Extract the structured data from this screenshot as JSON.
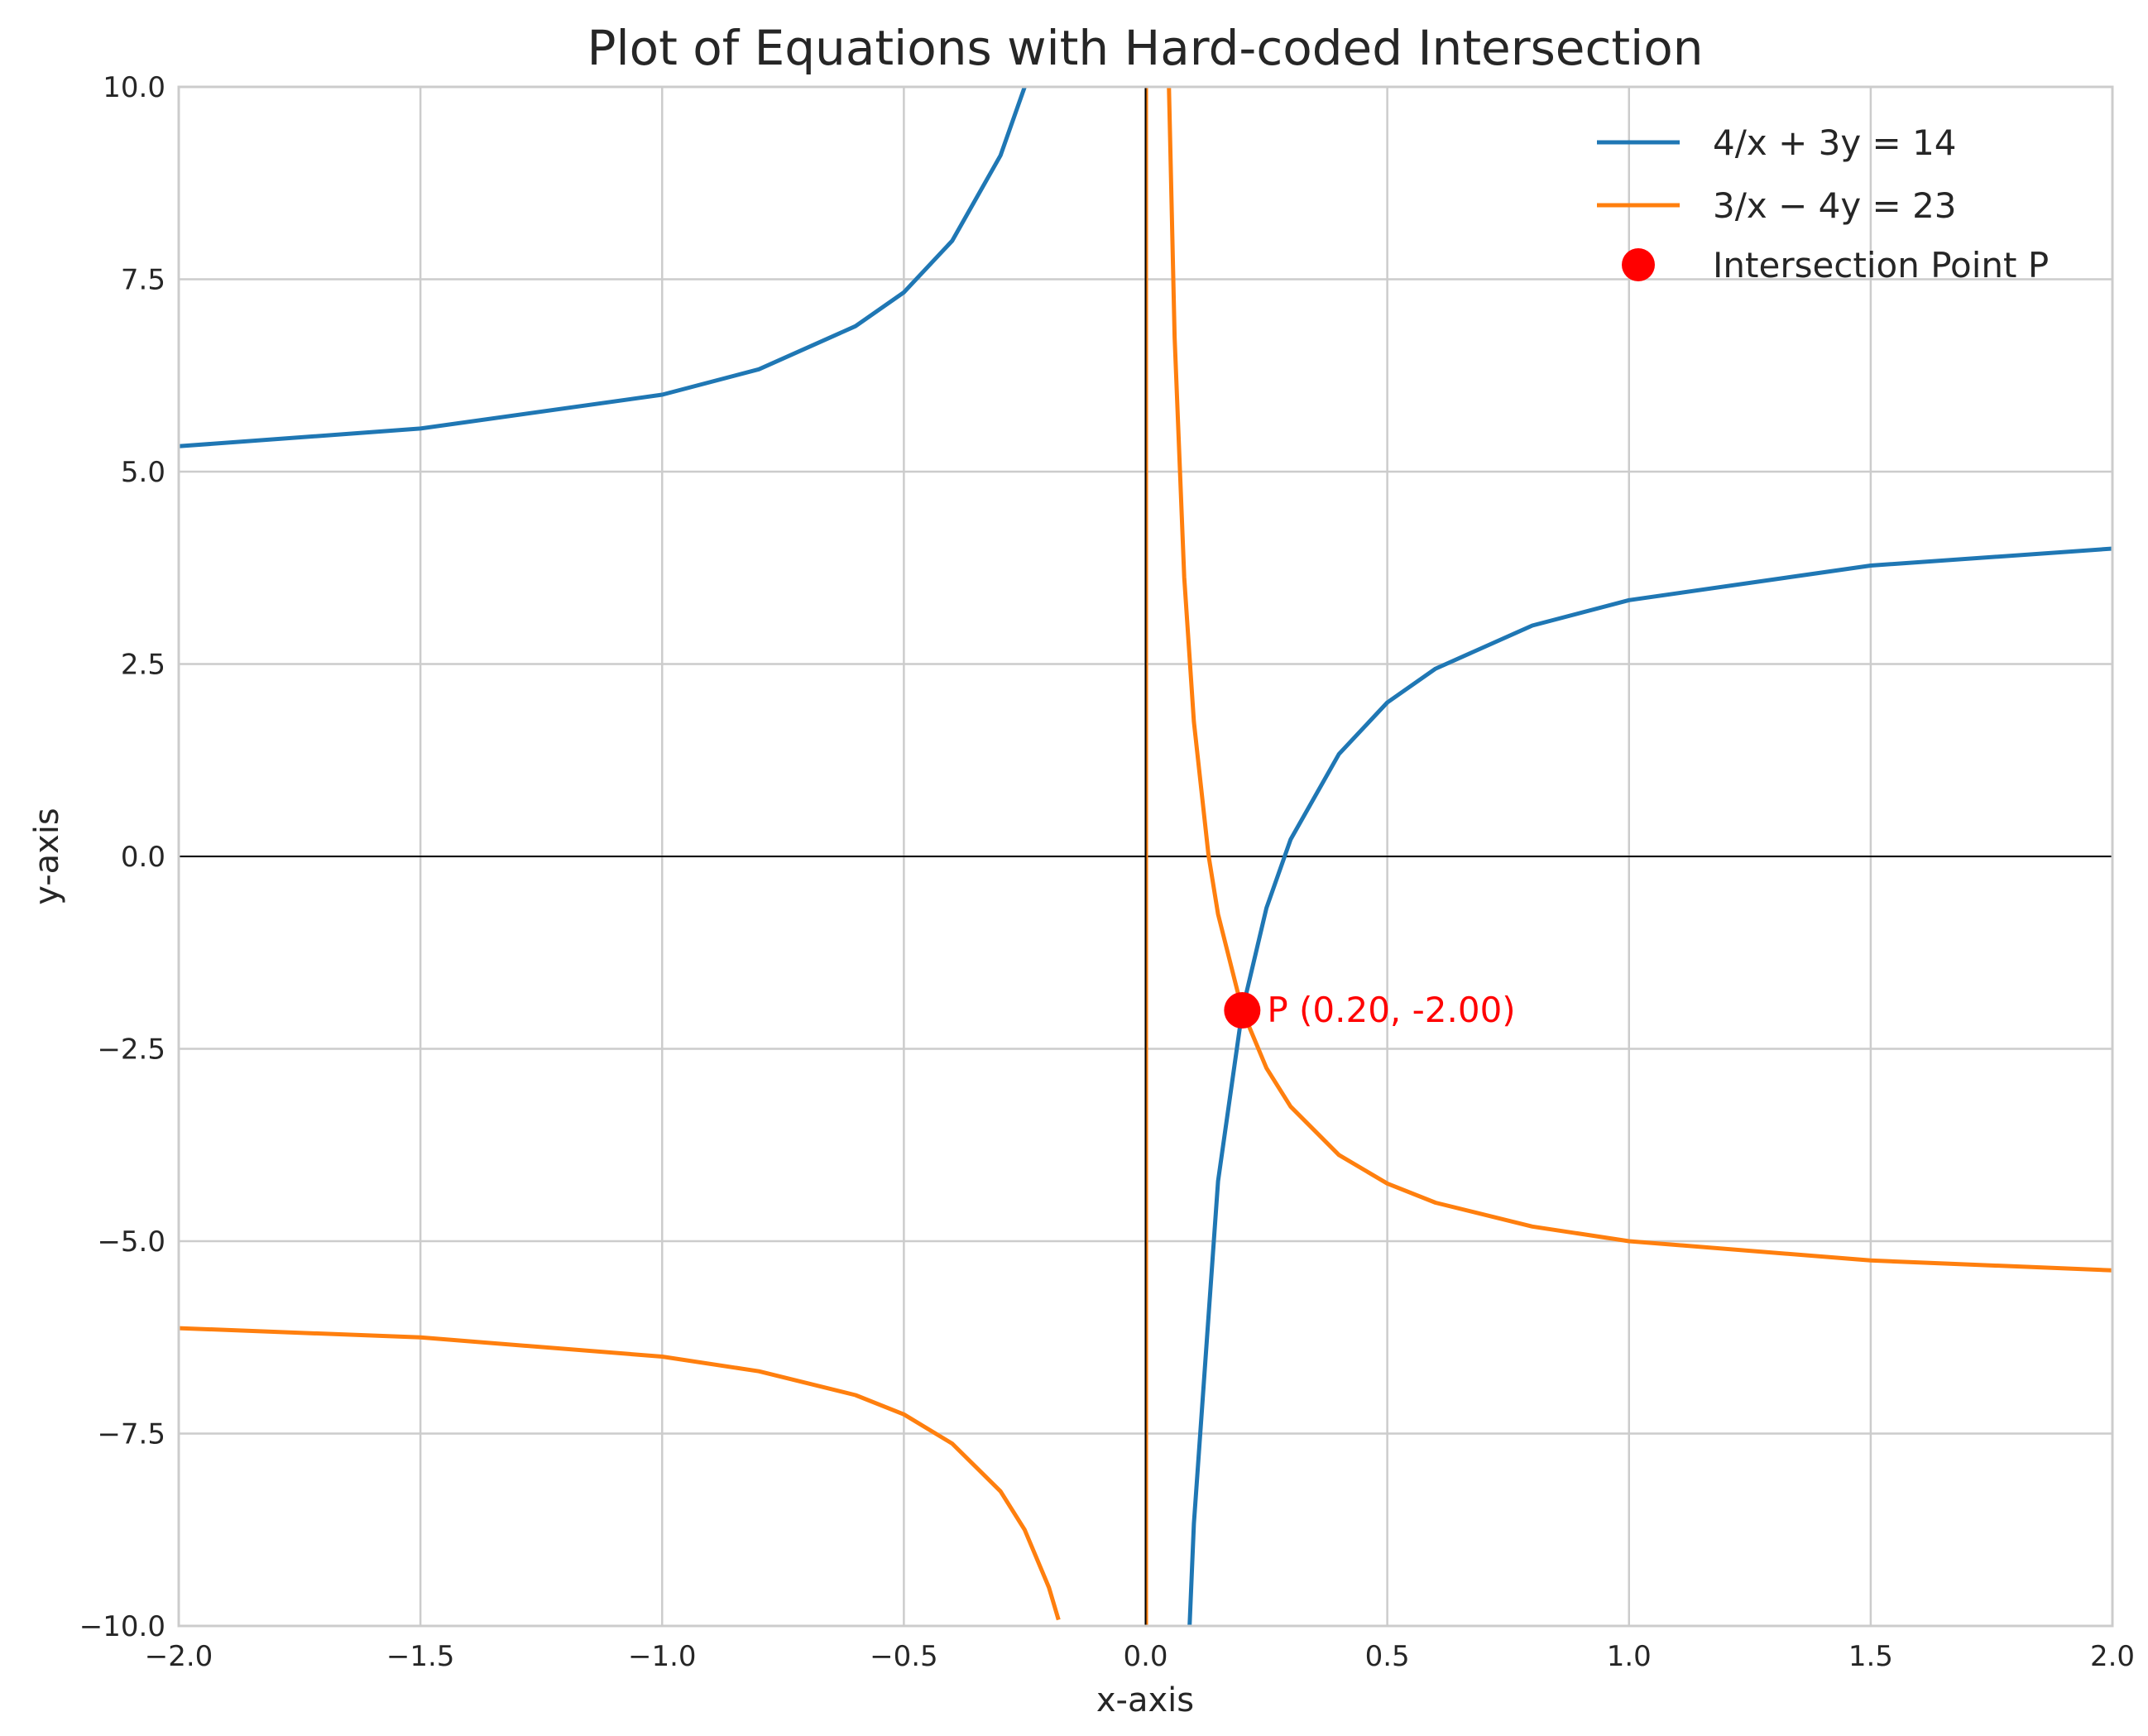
{
  "chart_data": {
    "type": "line",
    "title": "Plot of Equations with Hard-coded Intersection",
    "xlabel": "x-axis",
    "ylabel": "y-axis",
    "xlim": [
      -2.0,
      2.0
    ],
    "ylim": [
      -10.0,
      10.0
    ],
    "x_ticks": [
      -2.0,
      -1.5,
      -1.0,
      -0.5,
      0.0,
      0.5,
      1.0,
      1.5,
      2.0
    ],
    "x_tick_labels": [
      "−2.0",
      "−1.5",
      "−1.0",
      "−0.5",
      "0.0",
      "0.5",
      "1.0",
      "1.5",
      "2.0"
    ],
    "y_ticks": [
      -10.0,
      -7.5,
      -5.0,
      -2.5,
      0.0,
      2.5,
      5.0,
      7.5,
      10.0
    ],
    "y_tick_labels": [
      "−10.0",
      "−7.5",
      "−5.0",
      "−2.5",
      "0.0",
      "2.5",
      "5.0",
      "7.5",
      "10.0"
    ],
    "grid": true,
    "legend_position": "top-right",
    "reference_lines": [
      {
        "orientation": "horizontal",
        "value": 0,
        "color": "#000000"
      },
      {
        "orientation": "vertical",
        "value": 0,
        "color": "#000000"
      }
    ],
    "series": [
      {
        "name": "4/x + 3y = 14",
        "color": "#1f77b4",
        "x": [
          -2.0,
          -1.5,
          -1.0,
          -0.8,
          -0.6,
          -0.5,
          -0.4,
          -0.3,
          -0.25,
          0.09,
          0.1,
          0.15,
          0.2,
          0.25,
          0.3,
          0.4,
          0.5,
          0.6,
          0.8,
          1.0,
          1.5,
          2.0
        ],
        "y": [
          5.33,
          5.56,
          6.0,
          6.33,
          6.89,
          7.33,
          8.0,
          9.11,
          10.0,
          -10.15,
          -8.67,
          -4.22,
          -2.0,
          -0.67,
          0.22,
          1.33,
          2.0,
          2.44,
          3.0,
          3.33,
          3.78,
          4.0
        ]
      },
      {
        "name": "3/x − 4y = 23",
        "color": "#ff7f0e",
        "x": [
          -2.0,
          -1.5,
          -1.0,
          -0.8,
          -0.6,
          -0.5,
          -0.4,
          -0.3,
          -0.25,
          -0.2,
          -0.18,
          0.045,
          0.06,
          0.08,
          0.1,
          0.13,
          0.15,
          0.2,
          0.25,
          0.3,
          0.4,
          0.5,
          0.6,
          0.8,
          1.0,
          1.5,
          2.0
        ],
        "y": [
          -6.13,
          -6.25,
          -6.5,
          -6.69,
          -7.0,
          -7.25,
          -7.63,
          -8.25,
          -8.75,
          -9.5,
          -9.92,
          10.92,
          6.75,
          3.63,
          1.75,
          0.02,
          -0.75,
          -2.0,
          -2.75,
          -3.25,
          -3.88,
          -4.25,
          -4.5,
          -4.81,
          -5.0,
          -5.25,
          -5.38
        ]
      }
    ],
    "points": [
      {
        "name": "Intersection Point P",
        "x": 0.2,
        "y": -2.0,
        "color": "#ff0000",
        "label": "P (0.20, -2.00)"
      }
    ]
  }
}
